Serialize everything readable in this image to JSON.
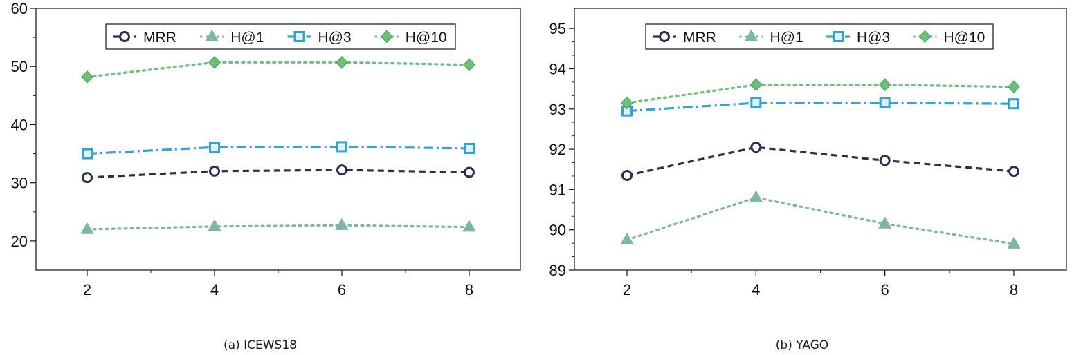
{
  "colors": {
    "MRR": "#2b2f4e",
    "H@1": "#7fb5a8",
    "H@3": "#3aa0cc",
    "H@10": "#6cc07a"
  },
  "chart_data": [
    {
      "type": "line",
      "caption": "(a)  ICEWS18",
      "x": [
        2,
        4,
        6,
        8
      ],
      "xticks": [
        "2",
        "4",
        "6",
        "8"
      ],
      "ylim": [
        15,
        60
      ],
      "yticks": [
        "20",
        "30",
        "40",
        "50",
        "60"
      ],
      "legend_position": "top",
      "series": [
        {
          "name": "MRR",
          "values": [
            30.9,
            32.0,
            32.2,
            31.8
          ]
        },
        {
          "name": "H@1",
          "values": [
            22.0,
            22.5,
            22.7,
            22.4
          ]
        },
        {
          "name": "H@3",
          "values": [
            35.0,
            36.1,
            36.2,
            35.9
          ]
        },
        {
          "name": "H@10",
          "values": [
            48.2,
            50.7,
            50.7,
            50.3
          ]
        }
      ]
    },
    {
      "type": "line",
      "caption": "(b)  YAGO",
      "x": [
        2,
        4,
        6,
        8
      ],
      "xticks": [
        "2",
        "4",
        "6",
        "8"
      ],
      "ylim": [
        89,
        95.5
      ],
      "yticks": [
        "89",
        "90",
        "91",
        "92",
        "93",
        "94",
        "95"
      ],
      "legend_position": "top",
      "series": [
        {
          "name": "MRR",
          "values": [
            91.35,
            92.05,
            91.72,
            91.45
          ]
        },
        {
          "name": "H@1",
          "values": [
            89.75,
            90.8,
            90.15,
            89.65
          ]
        },
        {
          "name": "H@3",
          "values": [
            92.95,
            93.15,
            93.15,
            93.13
          ]
        },
        {
          "name": "H@10",
          "values": [
            93.15,
            93.6,
            93.6,
            93.55
          ]
        }
      ]
    }
  ]
}
